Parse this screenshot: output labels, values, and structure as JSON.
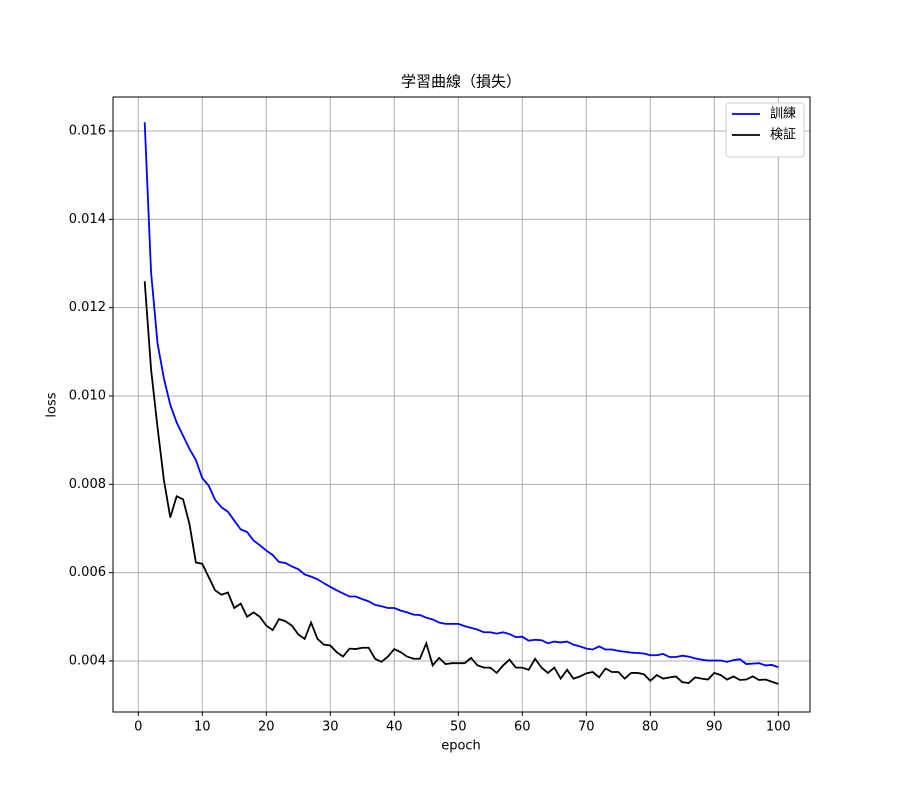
{
  "chart_data": {
    "type": "line",
    "title": "学習曲線（損失）",
    "xlabel": "epoch",
    "ylabel": "loss",
    "x": [
      1,
      2,
      3,
      4,
      5,
      6,
      7,
      8,
      9,
      10,
      11,
      12,
      13,
      14,
      15,
      16,
      17,
      18,
      19,
      20,
      21,
      22,
      23,
      24,
      25,
      26,
      27,
      28,
      29,
      30,
      31,
      32,
      33,
      34,
      35,
      36,
      37,
      38,
      39,
      40,
      41,
      42,
      43,
      44,
      45,
      46,
      47,
      48,
      49,
      50,
      51,
      52,
      53,
      54,
      55,
      56,
      57,
      58,
      59,
      60,
      61,
      62,
      63,
      64,
      65,
      66,
      67,
      68,
      69,
      70,
      71,
      72,
      73,
      74,
      75,
      76,
      77,
      78,
      79,
      80,
      81,
      82,
      83,
      84,
      85,
      86,
      87,
      88,
      89,
      90,
      91,
      92,
      93,
      94,
      95,
      96,
      97,
      98,
      99,
      100
    ],
    "series": [
      {
        "name": "訓練",
        "color": "#0000ff",
        "values": [
          0.0162,
          0.0128,
          0.0112,
          0.0104,
          0.0098,
          0.0094,
          0.0091,
          0.0088,
          0.00855,
          0.00814,
          0.00797,
          0.00765,
          0.00748,
          0.00738,
          0.00718,
          0.00698,
          0.00692,
          0.00673,
          0.00662,
          0.0065,
          0.0064,
          0.00624,
          0.00622,
          0.00614,
          0.00608,
          0.00596,
          0.00591,
          0.00585,
          0.00576,
          0.00568,
          0.0056,
          0.00553,
          0.00546,
          0.00546,
          0.0054,
          0.00535,
          0.00527,
          0.00524,
          0.0052,
          0.0052,
          0.00514,
          0.0051,
          0.00505,
          0.00504,
          0.00498,
          0.00494,
          0.00487,
          0.00484,
          0.00484,
          0.00484,
          0.00479,
          0.00475,
          0.00471,
          0.00465,
          0.00465,
          0.00462,
          0.00465,
          0.00461,
          0.00454,
          0.00455,
          0.00446,
          0.00448,
          0.00447,
          0.0044,
          0.00444,
          0.00442,
          0.00444,
          0.00437,
          0.00433,
          0.00428,
          0.00426,
          0.00433,
          0.00426,
          0.00426,
          0.00423,
          0.00421,
          0.00419,
          0.00418,
          0.00417,
          0.00413,
          0.00413,
          0.00416,
          0.00409,
          0.00409,
          0.00412,
          0.0041,
          0.00406,
          0.00403,
          0.00401,
          0.00401,
          0.00401,
          0.00398,
          0.00402,
          0.00404,
          0.00393,
          0.00394,
          0.00395,
          0.0039,
          0.00391,
          0.00386
        ]
      },
      {
        "name": "検証",
        "color": "#000000",
        "values": [
          0.0126,
          0.0106,
          0.0093,
          0.0081,
          0.00725,
          0.00773,
          0.00766,
          0.0071,
          0.00623,
          0.0062,
          0.0059,
          0.0056,
          0.0055,
          0.00555,
          0.0052,
          0.0053,
          0.005,
          0.0051,
          0.005,
          0.0048,
          0.0047,
          0.00495,
          0.0049,
          0.0048,
          0.0046,
          0.0045,
          0.00487,
          0.0045,
          0.00437,
          0.00435,
          0.0042,
          0.0041,
          0.00428,
          0.00427,
          0.0043,
          0.0043,
          0.00405,
          0.00398,
          0.0041,
          0.00427,
          0.0042,
          0.0041,
          0.00405,
          0.00405,
          0.0044,
          0.0039,
          0.00407,
          0.00393,
          0.00395,
          0.00395,
          0.00395,
          0.00407,
          0.0039,
          0.00385,
          0.00385,
          0.00373,
          0.0039,
          0.00403,
          0.00385,
          0.00385,
          0.0038,
          0.00405,
          0.00385,
          0.00373,
          0.00385,
          0.0036,
          0.0038,
          0.0036,
          0.00365,
          0.00372,
          0.00375,
          0.00363,
          0.00383,
          0.00375,
          0.00375,
          0.0036,
          0.00373,
          0.00373,
          0.0037,
          0.00355,
          0.00368,
          0.0036,
          0.00363,
          0.00365,
          0.00352,
          0.0035,
          0.00363,
          0.0036,
          0.00358,
          0.00373,
          0.00368,
          0.00358,
          0.00365,
          0.00357,
          0.00358,
          0.00365,
          0.00357,
          0.00358,
          0.00353,
          0.00348
        ]
      }
    ],
    "xlim": [
      -3.95,
      104.95
    ],
    "xticks": [
      0,
      10,
      20,
      30,
      40,
      50,
      60,
      70,
      80,
      90,
      100
    ],
    "ylim": [
      0.002845,
      0.01677
    ],
    "yticks": [
      0.004,
      0.006,
      0.008,
      {
        "value": 0.01,
        "label": "0.010"
      },
      0.012,
      0.014,
      0.016
    ],
    "grid": true,
    "legend": "upper-right"
  }
}
